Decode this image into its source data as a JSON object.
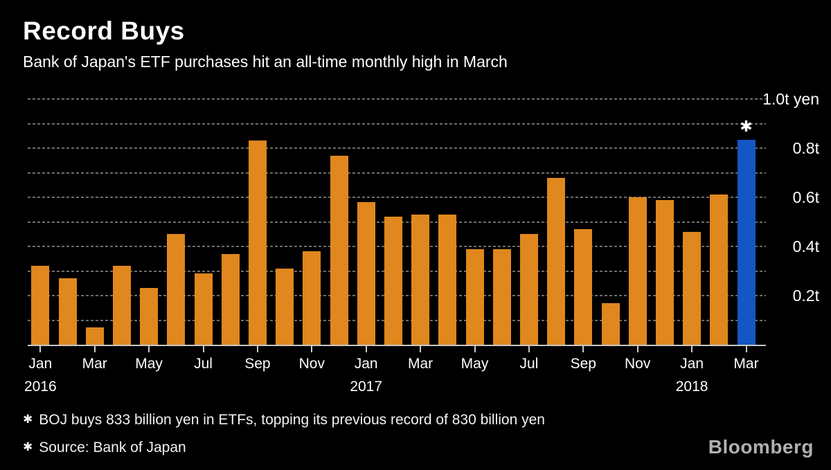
{
  "header": {
    "title": "Record Buys",
    "subtitle": "Bank of Japan's ETF purchases hit an all-time monthly high in March"
  },
  "chart_data": {
    "type": "bar",
    "title": "Record Buys",
    "subtitle": "Bank of Japan's ETF purchases hit an all-time monthly high in March",
    "unit": "trillion yen",
    "series_name": "BOJ monthly ETF purchases",
    "categories": [
      "Jan 2016",
      "Feb 2016",
      "Mar 2016",
      "Apr 2016",
      "May 2016",
      "Jun 2016",
      "Jul 2016",
      "Aug 2016",
      "Sep 2016",
      "Oct 2016",
      "Nov 2016",
      "Dec 2016",
      "Jan 2017",
      "Feb 2017",
      "Mar 2017",
      "Apr 2017",
      "May 2017",
      "Jun 2017",
      "Jul 2017",
      "Aug 2017",
      "Sep 2017",
      "Oct 2017",
      "Nov 2017",
      "Dec 2017",
      "Jan 2018",
      "Feb 2018",
      "Mar 2018"
    ],
    "values": [
      0.32,
      0.27,
      0.07,
      0.32,
      0.23,
      0.45,
      0.29,
      0.37,
      0.83,
      0.31,
      0.38,
      0.77,
      0.58,
      0.52,
      0.53,
      0.53,
      0.39,
      0.39,
      0.45,
      0.68,
      0.47,
      0.17,
      0.6,
      0.59,
      0.46,
      0.61,
      0.833
    ],
    "ylim": [
      0,
      1.0
    ],
    "grid": {
      "step": 0.1,
      "style": "dotted",
      "color": "#6e6e6e"
    },
    "legend": "none",
    "y_axis_side": "right",
    "y_axis_ticks": [
      {
        "value": 1.0,
        "label": "1.0t yen"
      },
      {
        "value": 0.8,
        "label": "0.8t"
      },
      {
        "value": 0.6,
        "label": "0.6t"
      },
      {
        "value": 0.4,
        "label": "0.4t"
      },
      {
        "value": 0.2,
        "label": "0.2t"
      }
    ],
    "x_axis_ticks": [
      {
        "index": 0,
        "month": "Jan",
        "year": "2016"
      },
      {
        "index": 2,
        "month": "Mar"
      },
      {
        "index": 4,
        "month": "May"
      },
      {
        "index": 6,
        "month": "Jul"
      },
      {
        "index": 8,
        "month": "Sep"
      },
      {
        "index": 10,
        "month": "Nov"
      },
      {
        "index": 12,
        "month": "Jan",
        "year": "2017"
      },
      {
        "index": 14,
        "month": "Mar"
      },
      {
        "index": 16,
        "month": "May"
      },
      {
        "index": 18,
        "month": "Jul"
      },
      {
        "index": 20,
        "month": "Sep"
      },
      {
        "index": 22,
        "month": "Nov"
      },
      {
        "index": 24,
        "month": "Jan",
        "year": "2018"
      },
      {
        "index": 26,
        "month": "Mar"
      }
    ],
    "highlight": {
      "index": 26,
      "marker": "✱",
      "note": "record month"
    },
    "colors": {
      "bar": "#E0871E",
      "highlight": "#1356C4",
      "gridline": "#6e6e6e",
      "axis": "#C9C9C9",
      "text": "#FFFFFF",
      "background": "#000000"
    }
  },
  "footnotes": [
    {
      "marker": "✱",
      "text": "BOJ buys 833 billion yen in ETFs, topping its previous record of 830 billion yen"
    },
    {
      "marker": "✱",
      "text": "Source: Bank of Japan"
    }
  ],
  "branding": {
    "logo_text": "Bloomberg",
    "logo_color": "#B0B0B0"
  }
}
